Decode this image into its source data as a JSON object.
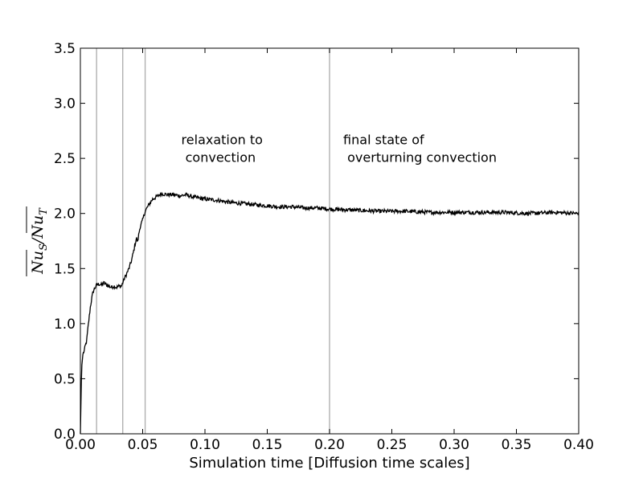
{
  "chart_data": {
    "type": "line",
    "xlabel": "Simulation time [Diffusion time scales]",
    "ylabel": "Nu_S / Nu_T (time-averaged)",
    "ylabel_parts": {
      "num": "Nu",
      "num_sub": "S",
      "sep": "/",
      "den": "Nu",
      "den_sub": "T"
    },
    "xlim": [
      0.0,
      0.4
    ],
    "ylim": [
      0.0,
      3.5
    ],
    "xticks": [
      "0.00",
      "0.05",
      "0.10",
      "0.15",
      "0.20",
      "0.25",
      "0.30",
      "0.35",
      "0.40"
    ],
    "yticks": [
      "0.0",
      "0.5",
      "1.0",
      "1.5",
      "2.0",
      "2.5",
      "3.0",
      "3.5"
    ],
    "grid": false,
    "vlines": [
      0.013,
      0.034,
      0.052,
      0.2
    ],
    "vline_color": "#b0b0b0",
    "line_color": "#000000",
    "annotations": [
      {
        "lines": [
          "relaxation to",
          " convection"
        ],
        "x": 0.081,
        "y": 2.63
      },
      {
        "lines": [
          "final state of",
          " overturning convection"
        ],
        "x": 0.211,
        "y": 2.63
      }
    ],
    "series": [
      {
        "x": [
          0.0,
          0.001,
          0.002,
          0.003,
          0.004,
          0.005,
          0.006,
          0.007,
          0.008,
          0.009,
          0.01,
          0.011,
          0.012,
          0.013,
          0.015,
          0.017,
          0.019,
          0.021,
          0.023,
          0.025,
          0.027,
          0.029,
          0.031,
          0.033,
          0.035,
          0.037,
          0.039,
          0.041,
          0.043,
          0.045,
          0.046,
          0.047,
          0.048,
          0.05,
          0.052,
          0.055,
          0.058,
          0.061,
          0.065,
          0.07,
          0.075,
          0.08,
          0.085,
          0.09,
          0.095,
          0.1,
          0.11,
          0.12,
          0.13,
          0.14,
          0.15,
          0.16,
          0.17,
          0.18,
          0.19,
          0.2,
          0.22,
          0.24,
          0.26,
          0.28,
          0.3,
          0.32,
          0.34,
          0.36,
          0.38,
          0.4
        ],
        "y": [
          0.0,
          0.6,
          0.72,
          0.75,
          0.8,
          0.84,
          0.95,
          1.05,
          1.15,
          1.22,
          1.28,
          1.31,
          1.33,
          1.35,
          1.36,
          1.35,
          1.37,
          1.35,
          1.34,
          1.33,
          1.34,
          1.33,
          1.34,
          1.34,
          1.4,
          1.45,
          1.5,
          1.57,
          1.67,
          1.78,
          1.74,
          1.82,
          1.88,
          1.94,
          2.02,
          2.08,
          2.13,
          2.15,
          2.18,
          2.17,
          2.17,
          2.16,
          2.17,
          2.15,
          2.14,
          2.13,
          2.12,
          2.1,
          2.09,
          2.08,
          2.07,
          2.06,
          2.06,
          2.05,
          2.05,
          2.04,
          2.03,
          2.02,
          2.02,
          2.01,
          2.01,
          2.01,
          2.01,
          2.0,
          2.01,
          2.0
        ],
        "noise_amplitude": 0.018
      }
    ]
  }
}
